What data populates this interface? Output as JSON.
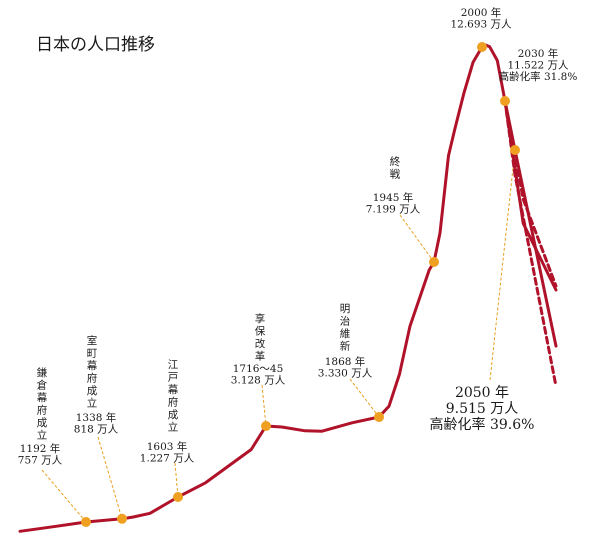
{
  "chart_data": {
    "type": "line",
    "title": "日本の人口推移",
    "xlabel": "",
    "ylabel": "",
    "units": "万人",
    "series": [
      {
        "name": "",
        "kind": "historical",
        "points": [
          [
            600,
            55
          ],
          [
            900,
            400
          ],
          [
            1192,
            757
          ],
          [
            1338,
            818
          ],
          [
            1400,
            850
          ],
          [
            1500,
            920
          ],
          [
            1603,
            1227
          ],
          [
            1650,
            1600
          ],
          [
            1700,
            2500
          ],
          [
            1716,
            3128
          ],
          [
            1750,
            3100
          ],
          [
            1800,
            3000
          ],
          [
            1830,
            2990
          ],
          [
            1850,
            3200
          ],
          [
            1868,
            3330
          ],
          [
            1880,
            3600
          ],
          [
            1900,
            4400
          ],
          [
            1920,
            5600
          ],
          [
            1940,
            7000
          ],
          [
            1945,
            7199
          ],
          [
            1947,
            7800
          ],
          [
            1960,
            9400
          ],
          [
            1970,
            10400
          ],
          [
            1980,
            11700
          ],
          [
            1990,
            12360
          ],
          [
            2000,
            12693
          ],
          [
            2005,
            12777
          ],
          [
            2010,
            12700
          ],
          [
            2020,
            12400
          ],
          [
            2030,
            11522
          ]
        ]
      },
      {
        "name": "",
        "kind": "projection-high",
        "dashed": false,
        "points": [
          [
            2030,
            11522
          ],
          [
            2060,
            8000
          ],
          [
            2100,
            6500
          ]
        ]
      },
      {
        "name": "",
        "kind": "projection-mid",
        "dashed": false,
        "points": [
          [
            2030,
            11522
          ],
          [
            2050,
            9515
          ],
          [
            2100,
            5100
          ]
        ]
      },
      {
        "name": "",
        "kind": "projection-low",
        "dashed": true,
        "points": [
          [
            2030,
            11522
          ],
          [
            2050,
            9000
          ],
          [
            2100,
            4100
          ]
        ]
      },
      {
        "name": "",
        "kind": "projection-high2",
        "dashed": true,
        "points": [
          [
            2030,
            11522
          ],
          [
            2060,
            8500
          ],
          [
            2100,
            6600
          ]
        ]
      }
    ],
    "annotations": [
      {
        "year": 1192,
        "value": 757,
        "lines": [
          "1192 年",
          "757 万人"
        ],
        "vertical": "鎌倉幕府成立"
      },
      {
        "year": 1338,
        "value": 818,
        "lines": [
          "1338 年",
          "818 万人"
        ],
        "vertical": "室町幕府成立"
      },
      {
        "year": 1603,
        "value": 1227,
        "lines": [
          "1603 年",
          "1.227 万人"
        ],
        "vertical": "江戸幕府成立"
      },
      {
        "year": 1716,
        "value": 3128,
        "lines": [
          "1716～45",
          "3.128 万人"
        ],
        "vertical": "享保改革"
      },
      {
        "year": 1868,
        "value": 3330,
        "lines": [
          "1868 年",
          "3.330 万人"
        ],
        "vertical": "明治維新"
      },
      {
        "year": 1945,
        "value": 7199,
        "lines": [
          "1945 年",
          "7.199 万人"
        ],
        "vertical": "終戦"
      },
      {
        "year": 2000,
        "value": 12693,
        "lines": [
          "2000 年",
          "12.693 万人"
        ],
        "vertical": ""
      },
      {
        "year": 2030,
        "value": 11522,
        "lines": [
          "2030 年",
          "11.522 万人",
          "高齢化率 31.8%"
        ],
        "vertical": ""
      },
      {
        "year": 2050,
        "value": 9515,
        "lines": [
          "2050 年",
          "9.515 万人",
          "高齢化率 39.6%"
        ],
        "vertical": ""
      }
    ]
  }
}
